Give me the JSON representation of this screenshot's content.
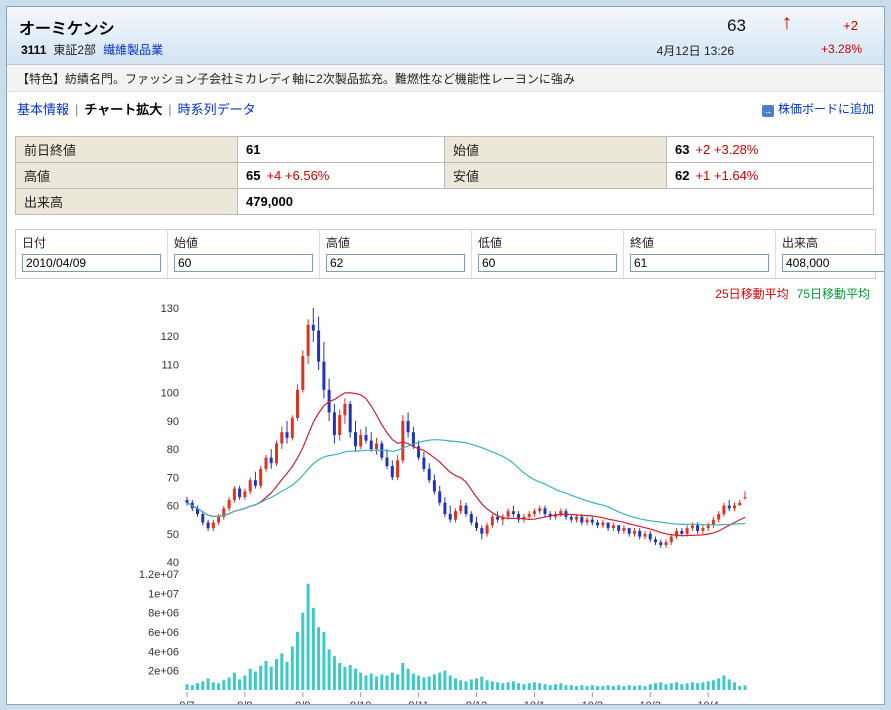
{
  "header": {
    "name": "オーミケンシ",
    "code": "3111",
    "market": "東証2部",
    "industry": "繊維製品業",
    "price": "63",
    "change": "+2",
    "change_pct": "+3.28%",
    "datetime": "4月12日 13:26"
  },
  "icons": {
    "up_arrow": "↑",
    "board_arrow": "→"
  },
  "feature": "【特色】紡績名門。ファッション子会社ミカレディ軸に2次製品拡充。難燃性など機能性レーヨンに強み",
  "nav": {
    "items": [
      {
        "label": "基本情報",
        "active": false
      },
      {
        "label": "チャート拡大",
        "active": true
      },
      {
        "label": "時系列データ",
        "active": false
      }
    ],
    "separator": "|",
    "board_link": "株価ボードに追加"
  },
  "summary_table": {
    "rows": [
      [
        {
          "label": "前日終値",
          "value": "61",
          "extra": ""
        },
        {
          "label": "始値",
          "value": "63",
          "extra": "+2 +3.28%"
        }
      ],
      [
        {
          "label": "高値",
          "value": "65",
          "extra": "+4 +6.56%"
        },
        {
          "label": "安値",
          "value": "62",
          "extra": "+1 +1.64%"
        }
      ],
      [
        {
          "label": "出来高",
          "value": "479,000",
          "extra": ""
        }
      ]
    ]
  },
  "form": {
    "fields": [
      {
        "label": "日付",
        "value": "2010/04/09"
      },
      {
        "label": "始値",
        "value": "60"
      },
      {
        "label": "高値",
        "value": "62"
      },
      {
        "label": "低値",
        "value": "60"
      },
      {
        "label": "終値",
        "value": "61"
      },
      {
        "label": "出来高",
        "value": "408,000"
      }
    ]
  },
  "legend": {
    "ma25": "25日移動平均",
    "ma75": "75日移動平均"
  },
  "colors": {
    "up_candle": "#dd3322",
    "down_candle": "#2233bb",
    "volume_bar": "#3cc9c9",
    "ma25_line": "#cc2233",
    "ma75_line": "#3ab4bc",
    "positive_text": "#cc0000",
    "link": "#0033cc"
  },
  "chart_data": {
    "type": "candlestick",
    "title": "",
    "price_ticks": [
      130,
      120,
      110,
      100,
      90,
      80,
      70,
      60,
      50,
      40
    ],
    "price_range": [
      40,
      130
    ],
    "volume_ticks": [
      "1.2e+07",
      "1e+07",
      "8e+06",
      "6e+06",
      "4e+06",
      "2e+06"
    ],
    "volume_tick_values": [
      12000000,
      10000000,
      8000000,
      6000000,
      4000000,
      2000000
    ],
    "volume_axis_max": 12000000,
    "volume_unit": 1000000,
    "ma_windows": [
      13,
      40
    ],
    "x_labels": [
      {
        "label": "9/7",
        "index": 0
      },
      {
        "label": "9/8",
        "index": 11
      },
      {
        "label": "9/9",
        "index": 22
      },
      {
        "label": "9/10",
        "index": 33
      },
      {
        "label": "9/11",
        "index": 44
      },
      {
        "label": "9/12",
        "index": 55
      },
      {
        "label": "10/1",
        "index": 66
      },
      {
        "label": "10/2",
        "index": 77
      },
      {
        "label": "10/3",
        "index": 88
      },
      {
        "label": "10/4",
        "index": 99
      }
    ],
    "candles_format": [
      "open",
      "high",
      "low",
      "close",
      "volume_millions"
    ],
    "candles": [
      [
        62,
        63,
        60,
        61,
        0.6
      ],
      [
        61,
        62,
        58,
        59,
        0.5
      ],
      [
        59,
        60,
        56,
        57,
        0.7
      ],
      [
        57,
        58,
        53,
        54,
        0.9
      ],
      [
        54,
        55,
        51,
        52,
        1.2
      ],
      [
        52,
        55,
        51,
        54,
        0.8
      ],
      [
        54,
        57,
        53,
        56,
        0.7
      ],
      [
        56,
        60,
        55,
        59,
        1.0
      ],
      [
        59,
        63,
        58,
        62,
        1.3
      ],
      [
        62,
        67,
        61,
        66,
        1.8
      ],
      [
        66,
        67,
        62,
        63,
        1.1
      ],
      [
        63,
        66,
        62,
        65,
        1.5
      ],
      [
        65,
        70,
        64,
        69,
        2.2
      ],
      [
        69,
        72,
        66,
        67,
        1.9
      ],
      [
        67,
        74,
        66,
        73,
        2.5
      ],
      [
        73,
        78,
        72,
        77,
        3.0
      ],
      [
        77,
        80,
        73,
        75,
        2.4
      ],
      [
        75,
        83,
        74,
        82,
        3.2
      ],
      [
        82,
        88,
        80,
        86,
        3.8
      ],
      [
        86,
        90,
        82,
        84,
        2.9
      ],
      [
        84,
        92,
        83,
        91,
        4.5
      ],
      [
        91,
        103,
        90,
        101,
        6.0
      ],
      [
        101,
        115,
        100,
        113,
        8.0
      ],
      [
        113,
        126,
        110,
        124,
        11.0
      ],
      [
        124,
        130,
        118,
        122,
        8.5
      ],
      [
        122,
        127,
        108,
        111,
        6.5
      ],
      [
        111,
        118,
        98,
        101,
        6.0
      ],
      [
        101,
        105,
        90,
        93,
        4.2
      ],
      [
        93,
        96,
        82,
        85,
        3.5
      ],
      [
        85,
        94,
        83,
        92,
        2.8
      ],
      [
        92,
        98,
        89,
        96,
        2.4
      ],
      [
        96,
        97,
        84,
        86,
        2.6
      ],
      [
        86,
        90,
        79,
        81,
        2.2
      ],
      [
        81,
        87,
        80,
        85,
        1.8
      ],
      [
        85,
        88,
        82,
        83,
        1.5
      ],
      [
        83,
        86,
        79,
        80,
        1.7
      ],
      [
        80,
        84,
        78,
        82,
        1.4
      ],
      [
        82,
        83,
        76,
        77,
        1.6
      ],
      [
        77,
        80,
        73,
        74,
        1.5
      ],
      [
        74,
        76,
        69,
        70,
        1.8
      ],
      [
        70,
        78,
        69,
        76,
        1.6
      ],
      [
        76,
        92,
        75,
        90,
        2.8
      ],
      [
        90,
        93,
        84,
        86,
        2.2
      ],
      [
        86,
        88,
        80,
        81,
        1.7
      ],
      [
        81,
        83,
        76,
        77,
        1.5
      ],
      [
        77,
        79,
        72,
        73,
        1.3
      ],
      [
        73,
        75,
        68,
        69,
        1.4
      ],
      [
        69,
        71,
        64,
        65,
        1.6
      ],
      [
        65,
        67,
        60,
        61,
        1.8
      ],
      [
        61,
        63,
        56,
        57,
        2.0
      ],
      [
        57,
        60,
        54,
        55,
        1.5
      ],
      [
        55,
        59,
        54,
        58,
        1.2
      ],
      [
        58,
        62,
        57,
        60,
        1.0
      ],
      [
        60,
        61,
        56,
        57,
        0.9
      ],
      [
        57,
        58,
        53,
        54,
        1.1
      ],
      [
        54,
        56,
        51,
        52,
        1.2
      ],
      [
        52,
        53,
        48,
        50,
        1.4
      ],
      [
        50,
        54,
        49,
        53,
        1.0
      ],
      [
        53,
        57,
        52,
        56,
        0.9
      ],
      [
        56,
        58,
        54,
        55,
        0.8
      ],
      [
        55,
        57,
        53,
        56,
        0.7
      ],
      [
        56,
        59,
        55,
        58,
        0.8
      ],
      [
        58,
        60,
        56,
        57,
        0.9
      ],
      [
        57,
        58,
        54,
        55,
        0.7
      ],
      [
        55,
        57,
        54,
        56,
        0.6
      ],
      [
        56,
        58,
        55,
        57,
        0.7
      ],
      [
        57,
        59,
        56,
        58,
        0.8
      ],
      [
        58,
        60,
        57,
        59,
        0.7
      ],
      [
        59,
        60,
        56,
        57,
        0.6
      ],
      [
        57,
        58,
        55,
        56,
        0.5
      ],
      [
        56,
        58,
        55,
        57,
        0.6
      ],
      [
        57,
        59,
        56,
        58,
        0.7
      ],
      [
        58,
        59,
        55,
        56,
        0.5
      ],
      [
        56,
        57,
        54,
        55,
        0.5
      ],
      [
        55,
        57,
        54,
        56,
        0.4
      ],
      [
        56,
        57,
        53,
        54,
        0.5
      ],
      [
        54,
        56,
        53,
        55,
        0.4
      ],
      [
        55,
        56,
        53,
        54,
        0.5
      ],
      [
        54,
        55,
        52,
        53,
        0.4
      ],
      [
        53,
        55,
        52,
        54,
        0.4
      ],
      [
        54,
        54,
        51,
        52,
        0.5
      ],
      [
        52,
        54,
        51,
        53,
        0.4
      ],
      [
        53,
        53,
        50,
        51,
        0.5
      ],
      [
        51,
        53,
        50,
        52,
        0.4
      ],
      [
        52,
        52,
        49,
        50,
        0.5
      ],
      [
        50,
        52,
        49,
        51,
        0.4
      ],
      [
        51,
        52,
        48,
        49,
        0.5
      ],
      [
        49,
        51,
        48,
        50,
        0.4
      ],
      [
        50,
        51,
        47,
        48,
        0.6
      ],
      [
        48,
        49,
        46,
        47,
        0.7
      ],
      [
        47,
        48,
        45,
        46,
        0.8
      ],
      [
        46,
        48,
        45,
        47,
        0.6
      ],
      [
        47,
        50,
        46,
        49,
        0.7
      ],
      [
        49,
        52,
        48,
        51,
        0.8
      ],
      [
        51,
        52,
        49,
        50,
        0.6
      ],
      [
        50,
        53,
        49,
        52,
        0.7
      ],
      [
        52,
        54,
        51,
        53,
        0.8
      ],
      [
        53,
        54,
        50,
        51,
        0.7
      ],
      [
        51,
        53,
        50,
        52,
        0.8
      ],
      [
        52,
        54,
        51,
        53,
        0.9
      ],
      [
        53,
        56,
        52,
        55,
        1.0
      ],
      [
        55,
        58,
        54,
        57,
        1.2
      ],
      [
        57,
        61,
        56,
        60,
        1.5
      ],
      [
        60,
        62,
        58,
        59,
        1.1
      ],
      [
        59,
        61,
        58,
        60,
        0.8
      ],
      [
        60,
        62,
        60,
        61,
        0.41
      ],
      [
        63,
        65,
        62,
        63,
        0.48
      ]
    ]
  }
}
